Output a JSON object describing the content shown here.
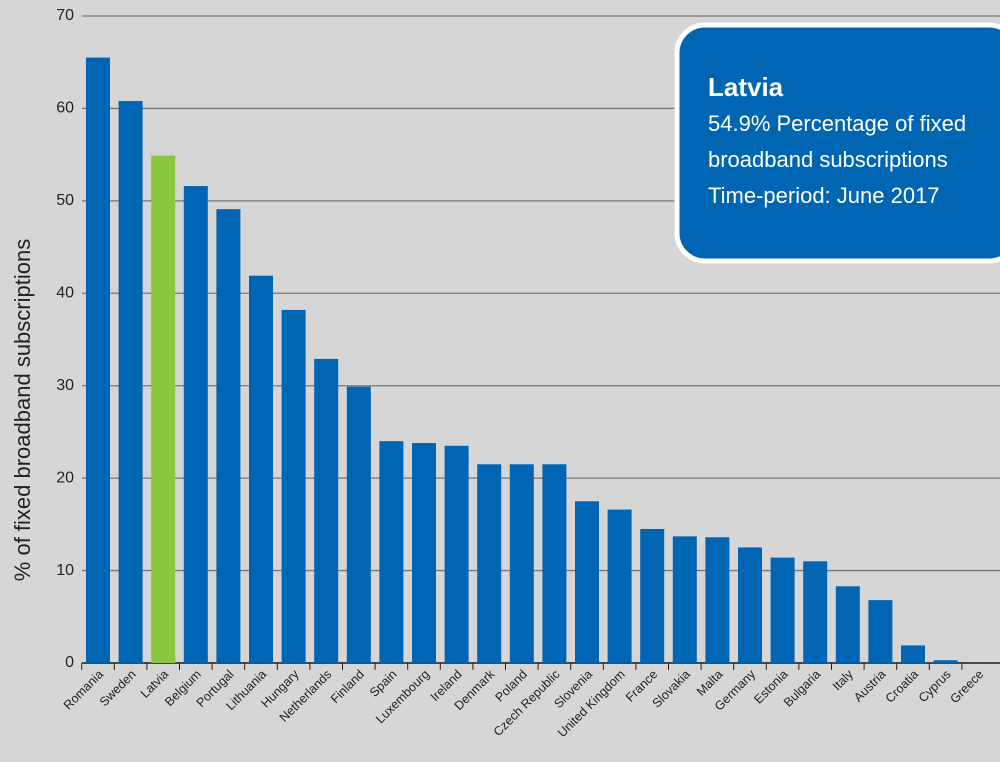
{
  "chart_data": {
    "type": "bar",
    "y_label": "% of fixed broadband subscriptions",
    "categories": [
      "Romania",
      "Sweden",
      "Latvia",
      "Belgium",
      "Portugal",
      "Lithuania",
      "Hungary",
      "Netherlands",
      "Finland",
      "Spain",
      "Luxembourg",
      "Ireland",
      "Denmark",
      "Poland",
      "Czech Republic",
      "Slovenia",
      "United Kingdom",
      "France",
      "Slovakia",
      "Malta",
      "Germany",
      "Estonia",
      "Bulgaria",
      "Italy",
      "Austria",
      "Croatia",
      "Cyprus",
      "Greece"
    ],
    "values": [
      65.5,
      60.8,
      54.9,
      51.6,
      49.1,
      41.9,
      38.2,
      32.9,
      29.9,
      24.0,
      23.8,
      23.5,
      21.5,
      21.5,
      21.5,
      17.5,
      16.6,
      14.5,
      13.7,
      13.6,
      12.5,
      11.4,
      11.0,
      8.3,
      6.8,
      1.9,
      0.3,
      0
    ],
    "color": "#0066b3",
    "highlight": "Latvia",
    "highlight_color": "#8cc63f",
    "ylim": [
      0,
      70
    ],
    "yticks": [
      0,
      10,
      20,
      30,
      40,
      50,
      60,
      70
    ],
    "grid": true,
    "tooltip": {
      "title": "Latvia",
      "lines": [
        "54.9% Percentage of fixed",
        "broadband subscriptions",
        "Time-period: June 2017"
      ]
    }
  }
}
